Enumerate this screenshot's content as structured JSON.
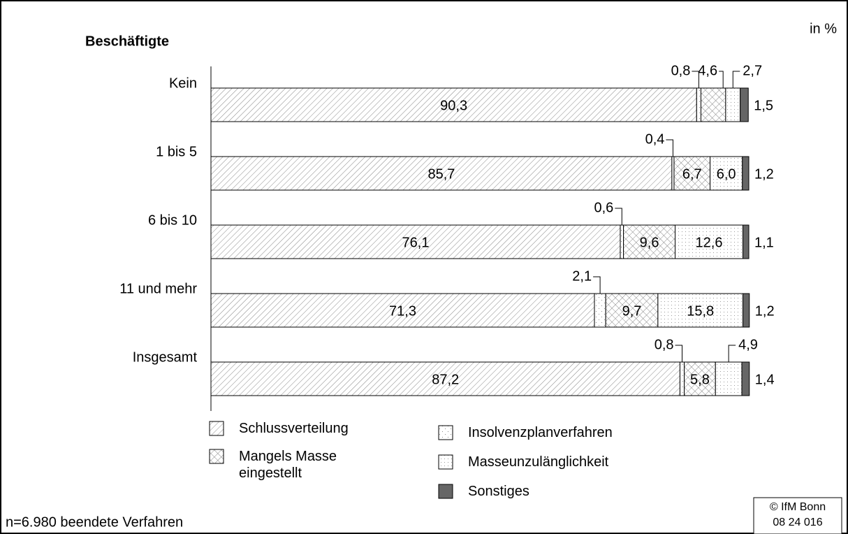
{
  "chart_data": {
    "type": "stacked-bar-horizontal",
    "title": "Beschäftigte",
    "unit_label": "in %",
    "note": "n=6.980 beendete Verfahren",
    "source": [
      "© IfM Bonn",
      "08 24 016"
    ],
    "categories": [
      "Kein",
      "1 bis 5",
      "6 bis 10",
      "11 und mehr",
      "Insgesamt"
    ],
    "xlim": [
      0,
      100
    ],
    "series": [
      {
        "name": "Schlussverteilung",
        "pattern": "hatch",
        "color": "#888888",
        "values": [
          90.3,
          85.7,
          76.1,
          71.3,
          87.2
        ],
        "value_labels": [
          "90,3",
          "85,7",
          "76,1",
          "71,3",
          "87,2"
        ]
      },
      {
        "name": "Insolvenzplanverfahren",
        "pattern": "sparse-dots",
        "color": "#888888",
        "values": [
          0.8,
          0.4,
          0.6,
          2.1,
          0.8
        ],
        "value_labels": [
          "0,8",
          "0,4",
          "0,6",
          "2,1",
          "0,8"
        ]
      },
      {
        "name": "Mangels Masse eingestellt",
        "pattern": "crosshatch",
        "color": "#888888",
        "values": [
          4.6,
          6.7,
          9.6,
          9.7,
          5.8
        ],
        "value_labels": [
          "4,6",
          "6,7",
          "9,6",
          "9,7",
          "5,8"
        ]
      },
      {
        "name": "Masseunzulänglichkeit",
        "pattern": "dots",
        "color": "#999999",
        "values": [
          2.7,
          6.0,
          12.6,
          15.8,
          4.9
        ],
        "value_labels": [
          "2,7",
          "6,0",
          "12,6",
          "15,8",
          "4,9"
        ]
      },
      {
        "name": "Sonstiges",
        "pattern": "solid",
        "color": "#666666",
        "values": [
          1.5,
          1.2,
          1.1,
          1.2,
          1.4
        ],
        "value_labels": [
          "1,5",
          "1,2",
          "1,1",
          "1,2",
          "1,4"
        ]
      }
    ]
  }
}
